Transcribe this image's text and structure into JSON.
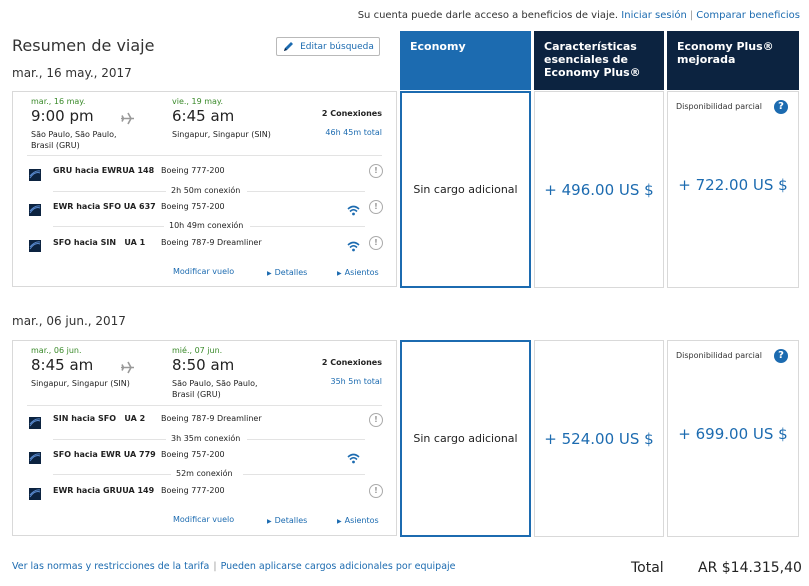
{
  "topbar": {
    "prompt": "Su cuenta puede darle acceso a beneficios de viaje.",
    "signin": "Iniciar sesión",
    "compare": "Comparar beneficios"
  },
  "summary": {
    "title": "Resumen de viaje",
    "edit_label": "Editar búsqueda"
  },
  "columns": {
    "economy": "Economy",
    "economy_plus": "Características esenciales de Economy Plus®",
    "economy_plus_enhanced": "Economy Plus® mejorada"
  },
  "trips": [
    {
      "date": "mar., 16 may., 2017",
      "depart": {
        "date": "mar., 16 may.",
        "time": "9:00 pm",
        "city": "São Paulo, São Paulo, Brasil (GRU)"
      },
      "arrive": {
        "date": "vie., 19 may.",
        "time": "6:45 am",
        "city": "Singapur, Singapur (SIN)"
      },
      "connections": "2 Conexiones",
      "total_duration": "46h 45m total",
      "segments": [
        {
          "route": "GRU hacia EWRUA 148",
          "aircraft": "Boeing 777-200",
          "wifi": false
        },
        {
          "route": "EWR hacia SFO UA 637",
          "aircraft": "Boeing 757-200",
          "wifi": true
        },
        {
          "route": "SFO hacia SIN   UA 1",
          "aircraft": "Boeing 787-9 Dreamliner",
          "wifi": true
        }
      ],
      "layovers": [
        "2h 50m conexión",
        "10h 49m conexión"
      ],
      "links": {
        "modify": "Modificar vuelo",
        "details": "Detalles",
        "seats": "Asientos"
      },
      "fares": {
        "economy": "Sin cargo adicional",
        "economy_plus": "+ 496.00 US $",
        "enhanced_availability": "Disponibilidad parcial",
        "enhanced_price": "+ 722.00 US $"
      }
    },
    {
      "date": "mar., 06 jun., 2017",
      "depart": {
        "date": "mar., 06 jun.",
        "time": "8:45 am",
        "city": "Singapur, Singapur (SIN)"
      },
      "arrive": {
        "date": "mié., 07 jun.",
        "time": "8:50 am",
        "city": "São Paulo, São Paulo, Brasil (GRU)"
      },
      "connections": "2 Conexiones",
      "total_duration": "35h 5m total",
      "segments": [
        {
          "route": "SIN hacia SFO   UA 2",
          "aircraft": "Boeing 787-9 Dreamliner",
          "wifi": false
        },
        {
          "route": "SFO hacia EWR UA 779",
          "aircraft": "Boeing 757-200",
          "wifi": true
        },
        {
          "route": "EWR hacia GRUUA 149",
          "aircraft": "Boeing 777-200",
          "wifi": false
        }
      ],
      "layovers": [
        "3h 35m conexión",
        "52m conexión"
      ],
      "links": {
        "modify": "Modificar vuelo",
        "details": "Detalles",
        "seats": "Asientos"
      },
      "fares": {
        "economy": "Sin cargo adicional",
        "economy_plus": "+ 524.00 US $",
        "enhanced_availability": "Disponibilidad parcial",
        "enhanced_price": "+ 699.00 US $"
      }
    }
  ],
  "footer": {
    "rules_link": "Ver las normas y restricciones de la tarifa",
    "baggage_link": "Pueden aplicarse cargos adicionales por equipaje",
    "total_label": "Total",
    "total_value": "AR $14.315,40"
  },
  "colors": {
    "accent": "#1c6bb0",
    "navy": "#0c2340",
    "green": "#3a8a2a"
  },
  "icons": [
    "pencil-icon",
    "airplane-icon",
    "united-logo-icon",
    "wifi-icon",
    "info-icon",
    "help-icon",
    "caret-right-icon"
  ]
}
